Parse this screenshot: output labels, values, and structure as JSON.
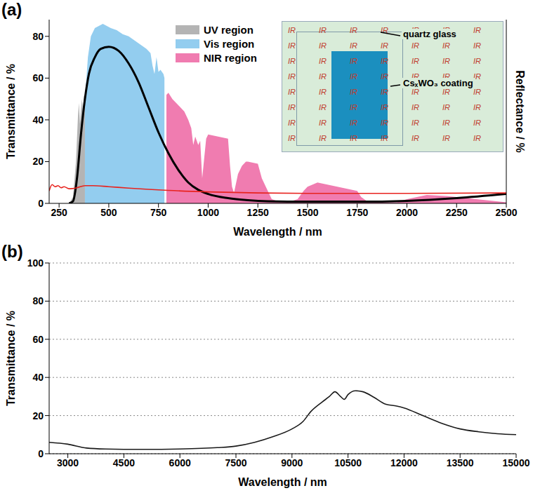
{
  "chart_data": [
    {
      "panel": "(a)",
      "type": "line",
      "xlabel": "Wavelength / nm",
      "ylabel": "Transmittance / %",
      "y2label": "Reflectance / %",
      "xlim": [
        200,
        2500
      ],
      "xticks": [
        250,
        500,
        750,
        1000,
        1250,
        1500,
        1750,
        2000,
        2250,
        2500
      ],
      "ylim": [
        0,
        88
      ],
      "yticks": [
        0,
        20,
        40,
        60,
        80
      ],
      "legend": "top",
      "inset": {
        "labels": [
          "quartz glass",
          "CsₓWO₃ coating"
        ],
        "pattern": "IR"
      },
      "series": [
        {
          "name": "UV region",
          "type": "area",
          "color": "#b4b4b4",
          "x": [
            300,
            320,
            335,
            345,
            350,
            355,
            360,
            365,
            370,
            375,
            380
          ],
          "values": [
            0,
            3,
            20,
            42,
            48,
            38,
            45,
            50,
            44,
            52,
            50
          ]
        },
        {
          "name": "Vis region",
          "type": "area",
          "color": "#93cdef",
          "x": [
            380,
            395,
            410,
            430,
            450,
            470,
            490,
            510,
            540,
            570,
            600,
            630,
            660,
            690,
            710,
            720,
            730,
            740,
            750,
            760,
            775,
            780
          ],
          "values": [
            50,
            70,
            80,
            84,
            85,
            86,
            85,
            84,
            83,
            81,
            80,
            78,
            76,
            74,
            72,
            66,
            62,
            70,
            63,
            64,
            62,
            60
          ]
        },
        {
          "name": "NIR region",
          "type": "area",
          "color": "#f07cb0",
          "x": [
            790,
            800,
            820,
            850,
            880,
            900,
            915,
            925,
            935,
            950,
            960,
            970,
            990,
            1000,
            1050,
            1100,
            1110,
            1120,
            1130,
            1150,
            1170,
            1190,
            1200,
            1250,
            1270,
            1300,
            1320,
            1350,
            1400,
            1450,
            1480,
            1500,
            1550,
            1600,
            1650,
            1700,
            1750,
            1770,
            1800,
            1850,
            1950,
            2000,
            2050,
            2100,
            2200,
            2300,
            2400,
            2500
          ],
          "values": [
            52,
            53,
            50,
            47,
            44,
            40,
            36,
            28,
            32,
            28,
            30,
            12,
            31,
            33,
            32,
            31,
            18,
            8,
            5,
            14,
            18,
            20,
            20,
            19,
            12,
            6,
            2,
            1,
            0.5,
            2,
            6,
            8,
            10,
            9,
            8,
            7,
            6,
            3,
            1,
            0.5,
            0.5,
            2,
            3,
            4,
            3.5,
            2.5,
            1.5,
            0.5
          ]
        },
        {
          "type": "line",
          "color": "#000000",
          "x": [
            300,
            320,
            340,
            360,
            380,
            400,
            430,
            460,
            500,
            550,
            600,
            650,
            700,
            750,
            800,
            850,
            900,
            950,
            1000,
            1100,
            1200,
            1300,
            1500,
            1750,
            2000,
            2250,
            2500
          ],
          "values": [
            0,
            1,
            12,
            33,
            50,
            62,
            70,
            74,
            75,
            73,
            67,
            58,
            46,
            34,
            24,
            16,
            10,
            6.5,
            4.5,
            2.5,
            1.5,
            1,
            0.8,
            0.8,
            1.2,
            2.5,
            4.5
          ]
        },
        {
          "type": "line",
          "color": "#e8231e",
          "x": [
            200,
            215,
            230,
            245,
            260,
            275,
            300,
            340,
            380,
            420,
            500,
            600,
            800,
            1000,
            1500,
            2000,
            2500
          ],
          "values": [
            6,
            9,
            8,
            8.5,
            7.5,
            8,
            7,
            7.5,
            8.5,
            8.5,
            8,
            7.3,
            6.2,
            5.5,
            4.8,
            4.8,
            5
          ]
        }
      ]
    },
    {
      "panel": "(b)",
      "type": "line",
      "xlabel": "Wavelength / nm",
      "ylabel": "Transmittance / %",
      "xlim": [
        2500,
        15000
      ],
      "xticks": [
        3000,
        4500,
        6000,
        7500,
        9000,
        10500,
        12000,
        13500,
        15000
      ],
      "ylim": [
        0,
        100
      ],
      "yticks": [
        0,
        20,
        40,
        60,
        80,
        100
      ],
      "grid": "y",
      "series": [
        {
          "type": "line",
          "color": "#1a1a1a",
          "x": [
            2500,
            3000,
            3500,
            4000,
            5000,
            6000,
            7000,
            7500,
            8000,
            8500,
            9000,
            9300,
            9500,
            9800,
            10000,
            10150,
            10300,
            10400,
            10500,
            10700,
            10900,
            11200,
            11500,
            11800,
            12000,
            12500,
            13000,
            13500,
            14000,
            14500,
            15000
          ],
          "values": [
            6,
            5,
            3,
            2.5,
            2.3,
            2.5,
            3.2,
            4,
            6,
            9,
            13,
            17,
            22,
            27,
            30,
            32.5,
            30,
            28.5,
            31,
            33,
            32.5,
            29.5,
            26,
            25,
            24,
            20,
            16,
            13,
            11.5,
            10.5,
            10
          ]
        }
      ]
    }
  ]
}
